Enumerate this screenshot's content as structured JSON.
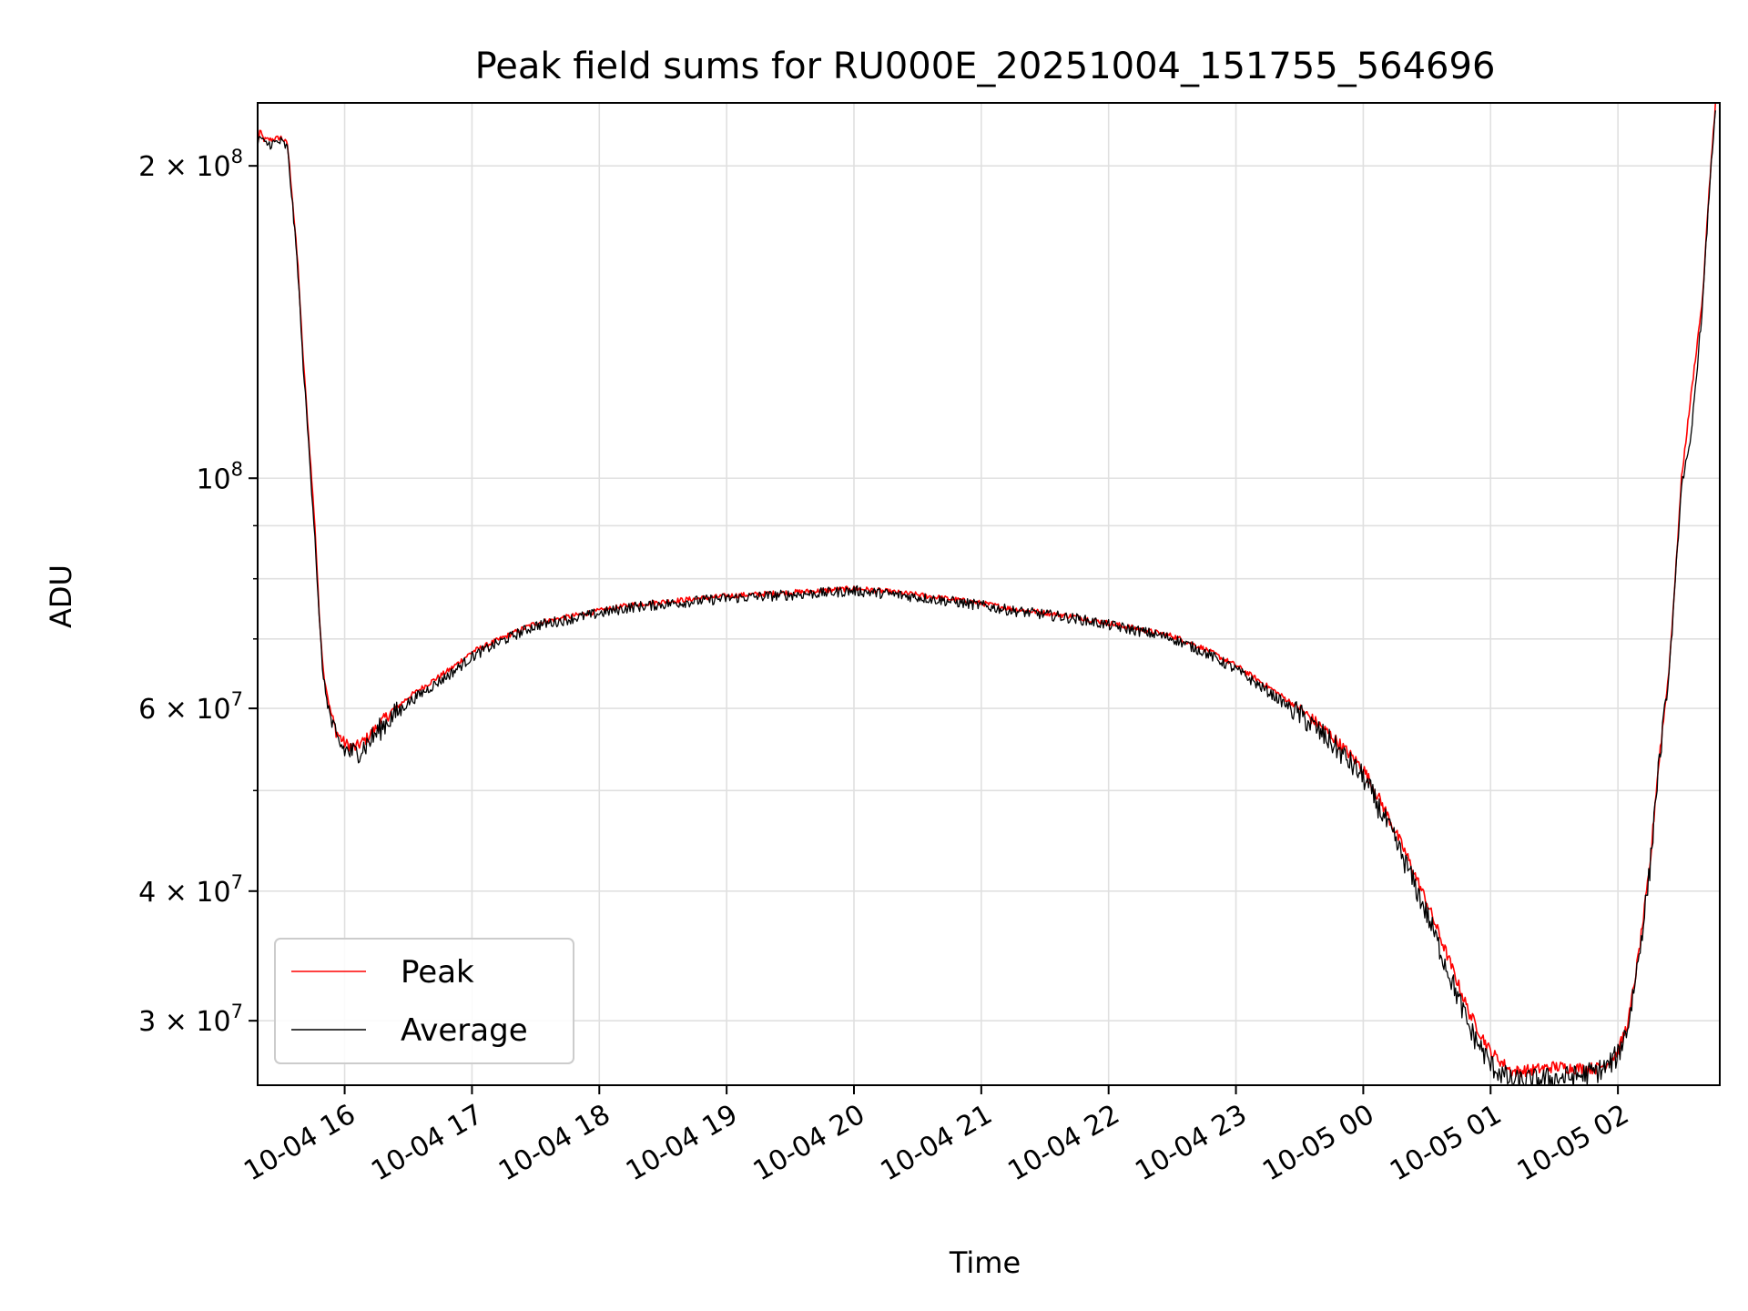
{
  "chart_data": {
    "type": "line",
    "title": "Peak field sums for RU000E_20251004_151755_564696",
    "xlabel": "Time",
    "ylabel": "ADU",
    "yscale": "log",
    "grid": true,
    "legend_position": "lower-left",
    "xlim": [
      "2025-10-04 15:19",
      "2025-10-05 02:48"
    ],
    "ylim": [
      26000000,
      230000000
    ],
    "x_ticks": [
      {
        "value": "2025-10-04 16:00",
        "label": "10-04 16"
      },
      {
        "value": "2025-10-04 17:00",
        "label": "10-04 17"
      },
      {
        "value": "2025-10-04 18:00",
        "label": "10-04 18"
      },
      {
        "value": "2025-10-04 19:00",
        "label": "10-04 19"
      },
      {
        "value": "2025-10-04 20:00",
        "label": "10-04 20"
      },
      {
        "value": "2025-10-04 21:00",
        "label": "10-04 21"
      },
      {
        "value": "2025-10-04 22:00",
        "label": "10-04 22"
      },
      {
        "value": "2025-10-04 23:00",
        "label": "10-04 23"
      },
      {
        "value": "2025-10-05 00:00",
        "label": "10-05 00"
      },
      {
        "value": "2025-10-05 01:00",
        "label": "10-05 01"
      },
      {
        "value": "2025-10-05 02:00",
        "label": "10-05 02"
      }
    ],
    "y_ticks_major": [
      {
        "value": 30000000,
        "mant": "3",
        "exp": "7"
      },
      {
        "value": 40000000,
        "mant": "4",
        "exp": "7"
      },
      {
        "value": 60000000,
        "mant": "6",
        "exp": "7"
      },
      {
        "value": 100000000,
        "mant": "",
        "exp": "8"
      },
      {
        "value": 200000000,
        "mant": "2",
        "exp": "8"
      }
    ],
    "y_ticks_minor": [
      50000000,
      70000000,
      80000000,
      90000000
    ],
    "series": [
      {
        "name": "Peak",
        "color": "#ff0000",
        "x": [
          "2025-10-04 15:19",
          "2025-10-04 15:20",
          "2025-10-04 15:22",
          "2025-10-04 15:25",
          "2025-10-04 15:30",
          "2025-10-04 15:33",
          "2025-10-04 15:35",
          "2025-10-04 15:38",
          "2025-10-04 15:40",
          "2025-10-04 15:43",
          "2025-10-04 15:46",
          "2025-10-04 15:48",
          "2025-10-04 15:50",
          "2025-10-04 15:53",
          "2025-10-04 15:56",
          "2025-10-04 16:00",
          "2025-10-04 16:05",
          "2025-10-04 16:10",
          "2025-10-04 16:15",
          "2025-10-04 16:20",
          "2025-10-04 16:30",
          "2025-10-04 16:40",
          "2025-10-04 16:50",
          "2025-10-04 17:00",
          "2025-10-04 17:10",
          "2025-10-04 17:20",
          "2025-10-04 17:30",
          "2025-10-04 17:45",
          "2025-10-04 18:00",
          "2025-10-04 18:15",
          "2025-10-04 18:30",
          "2025-10-04 18:45",
          "2025-10-04 19:00",
          "2025-10-04 19:15",
          "2025-10-04 19:30",
          "2025-10-04 19:45",
          "2025-10-04 20:00",
          "2025-10-04 20:15",
          "2025-10-04 20:30",
          "2025-10-04 20:45",
          "2025-10-04 21:00",
          "2025-10-04 21:15",
          "2025-10-04 21:30",
          "2025-10-04 21:45",
          "2025-10-04 22:00",
          "2025-10-04 22:15",
          "2025-10-04 22:30",
          "2025-10-04 22:45",
          "2025-10-04 23:00",
          "2025-10-04 23:15",
          "2025-10-04 23:30",
          "2025-10-04 23:45",
          "2025-10-05 00:00",
          "2025-10-05 00:10",
          "2025-10-05 00:20",
          "2025-10-05 00:30",
          "2025-10-05 00:40",
          "2025-10-05 00:50",
          "2025-10-05 01:00",
          "2025-10-05 01:10",
          "2025-10-05 01:20",
          "2025-10-05 01:30",
          "2025-10-05 01:40",
          "2025-10-05 01:50",
          "2025-10-05 01:55",
          "2025-10-05 02:00",
          "2025-10-05 02:05",
          "2025-10-05 02:10",
          "2025-10-05 02:15",
          "2025-10-05 02:18",
          "2025-10-05 02:20",
          "2025-10-05 02:24",
          "2025-10-05 02:27",
          "2025-10-05 02:30",
          "2025-10-05 02:34",
          "2025-10-05 02:40",
          "2025-10-05 02:43",
          "2025-10-05 02:46"
        ],
        "y": [
          210000000,
          216000000,
          212000000,
          212000000,
          213000000,
          210000000,
          190000000,
          160000000,
          135000000,
          110000000,
          90000000,
          74000000,
          65000000,
          60000000,
          57000000,
          55500000,
          55000000,
          56000000,
          57500000,
          59000000,
          61500000,
          63500000,
          65500000,
          68000000,
          69500000,
          71000000,
          72500000,
          73500000,
          74500000,
          75500000,
          76000000,
          76500000,
          77000000,
          77300000,
          77600000,
          77900000,
          78300000,
          77800000,
          77200000,
          76500000,
          75800000,
          74800000,
          74200000,
          73500000,
          72500000,
          71500000,
          70500000,
          68500000,
          66000000,
          63000000,
          60000000,
          56500000,
          52500000,
          48000000,
          43500000,
          39000000,
          34500000,
          30500000,
          28000000,
          26800000,
          26900000,
          27100000,
          27000000,
          27000000,
          27300000,
          28000000,
          30000000,
          35000000,
          42000000,
          50000000,
          55000000,
          65000000,
          80000000,
          100000000,
          118000000,
          150000000,
          190000000,
          230000000
        ],
        "noise": 0.006
      },
      {
        "name": "Average",
        "color": "#000000",
        "x": [
          "2025-10-04 15:19",
          "2025-10-04 15:20",
          "2025-10-04 15:22",
          "2025-10-04 15:25",
          "2025-10-04 15:30",
          "2025-10-04 15:33",
          "2025-10-04 15:35",
          "2025-10-04 15:38",
          "2025-10-04 15:40",
          "2025-10-04 15:43",
          "2025-10-04 15:46",
          "2025-10-04 15:48",
          "2025-10-04 15:50",
          "2025-10-04 15:53",
          "2025-10-04 15:56",
          "2025-10-04 16:00",
          "2025-10-04 16:05",
          "2025-10-04 16:10",
          "2025-10-04 16:15",
          "2025-10-04 16:20",
          "2025-10-04 16:30",
          "2025-10-04 16:40",
          "2025-10-04 16:50",
          "2025-10-04 17:00",
          "2025-10-04 17:10",
          "2025-10-04 17:20",
          "2025-10-04 17:30",
          "2025-10-04 17:45",
          "2025-10-04 18:00",
          "2025-10-04 18:15",
          "2025-10-04 18:30",
          "2025-10-04 18:45",
          "2025-10-04 19:00",
          "2025-10-04 19:15",
          "2025-10-04 19:30",
          "2025-10-04 19:45",
          "2025-10-04 20:00",
          "2025-10-04 20:15",
          "2025-10-04 20:30",
          "2025-10-04 20:45",
          "2025-10-04 21:00",
          "2025-10-04 21:15",
          "2025-10-04 21:30",
          "2025-10-04 21:45",
          "2025-10-04 22:00",
          "2025-10-04 22:15",
          "2025-10-04 22:30",
          "2025-10-04 22:45",
          "2025-10-04 23:00",
          "2025-10-04 23:15",
          "2025-10-04 23:30",
          "2025-10-04 23:45",
          "2025-10-05 00:00",
          "2025-10-05 00:10",
          "2025-10-05 00:20",
          "2025-10-05 00:30",
          "2025-10-05 00:40",
          "2025-10-05 00:50",
          "2025-10-05 01:00",
          "2025-10-05 01:10",
          "2025-10-05 01:20",
          "2025-10-05 01:30",
          "2025-10-05 01:40",
          "2025-10-05 01:50",
          "2025-10-05 01:55",
          "2025-10-05 02:00",
          "2025-10-05 02:05",
          "2025-10-05 02:10",
          "2025-10-05 02:15",
          "2025-10-05 02:18",
          "2025-10-05 02:20",
          "2025-10-05 02:24",
          "2025-10-05 02:27",
          "2025-10-05 02:30",
          "2025-10-05 02:34",
          "2025-10-05 02:40",
          "2025-10-05 02:43",
          "2025-10-05 02:46"
        ],
        "y": [
          208000000,
          214000000,
          210000000,
          210000000,
          211000000,
          208000000,
          188000000,
          158000000,
          133000000,
          108000000,
          88000000,
          73000000,
          64000000,
          59000000,
          56000000,
          54700000,
          54300000,
          55300000,
          56800000,
          58300000,
          60800000,
          62800000,
          64800000,
          67300000,
          69000000,
          70600000,
          72100000,
          73100000,
          74100000,
          75100000,
          75600000,
          76100000,
          76600000,
          76900000,
          77200000,
          77500000,
          77900000,
          77400000,
          76800000,
          76100000,
          75400000,
          74500000,
          73900000,
          73200000,
          72200000,
          71200000,
          70100000,
          68000000,
          65400000,
          62300000,
          59200000,
          55600000,
          51500000,
          47000000,
          42500000,
          38000000,
          33500000,
          29500000,
          27200000,
          26200000,
          26300000,
          26400000,
          26500000,
          26800000,
          27100000,
          27800000,
          29800000,
          34800000,
          41800000,
          49800000,
          54500000,
          64500000,
          79000000,
          99000000,
          107000000,
          148000000,
          188000000,
          228000000
        ],
        "noise": 0.012
      }
    ]
  }
}
